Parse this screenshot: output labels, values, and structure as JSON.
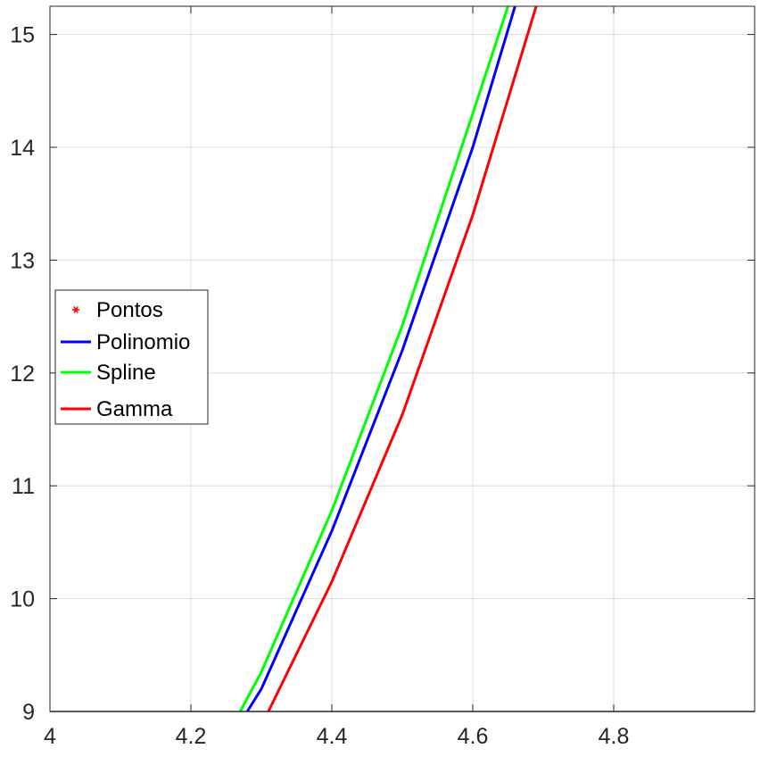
{
  "chart_data": {
    "type": "line",
    "title": "",
    "xlabel": "",
    "ylabel": "",
    "xlim": [
      4,
      5
    ],
    "ylim": [
      9,
      15.25
    ],
    "x_ticks": [
      4,
      4.2,
      4.4,
      4.6,
      4.8
    ],
    "x_tick_labels": [
      "4",
      "4.2",
      "4.4",
      "4.6",
      "4.8"
    ],
    "y_ticks": [
      9,
      10,
      11,
      12,
      13,
      14,
      15
    ],
    "y_tick_labels": [
      "9",
      "10",
      "11",
      "12",
      "13",
      "14",
      "15"
    ],
    "grid": true,
    "legend_position": "center-left",
    "legend": [
      {
        "label": "Pontos",
        "marker": "asterisk",
        "color": "#ff0000"
      },
      {
        "label": "Polinomio",
        "marker": "line",
        "color": "#0000ff"
      },
      {
        "label": "Spline",
        "marker": "line",
        "color": "#00ff00"
      },
      {
        "label": "Gamma",
        "marker": "line",
        "color": "#ff0000"
      }
    ],
    "series": [
      {
        "name": "Polinomio",
        "color": "#0000ff",
        "x": [
          4.28,
          4.3,
          4.4,
          4.5,
          4.6,
          4.66
        ],
        "y": [
          9.0,
          9.2,
          10.6,
          12.2,
          14.0,
          15.25
        ]
      },
      {
        "name": "Spline",
        "color": "#00ff00",
        "x": [
          4.27,
          4.3,
          4.4,
          4.5,
          4.6,
          4.65
        ],
        "y": [
          9.0,
          9.35,
          10.78,
          12.42,
          14.3,
          15.25
        ]
      },
      {
        "name": "Gamma",
        "color": "#ff0000",
        "x": [
          4.31,
          4.4,
          4.5,
          4.6,
          4.69
        ],
        "y": [
          9.0,
          10.15,
          11.63,
          13.4,
          15.25
        ]
      }
    ]
  }
}
